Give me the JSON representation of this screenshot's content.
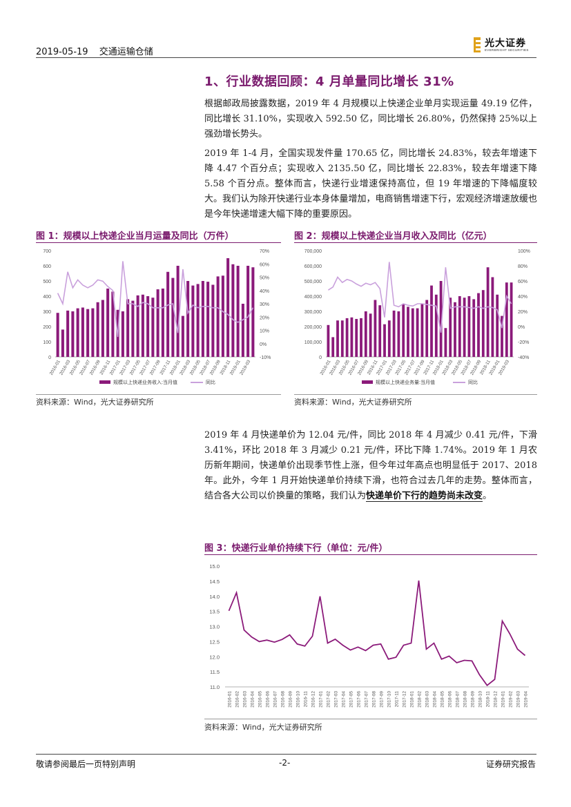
{
  "header": {
    "date": "2019-05-19",
    "sector": "交通运输仓储",
    "logo_cn": "光大证券",
    "logo_en": "EVERBRIGHT SECURITIES"
  },
  "section_title": "1、行业数据回顾：4 月单量同比增长 31%",
  "paragraphs": {
    "p1": "根据邮政局披露数据，2019 年 4 月规模以上快递企业单月实现运量 49.19 亿件，同比增长 31.10%，实现收入 592.50 亿，同比增长 26.80%，仍然保持 25%以上强劲增长势头。",
    "p2": "2019 年 1-4 月，全国实现发件量 170.65 亿，同比增长 24.83%，较去年增速下降 4.47 个百分点；实现收入 2135.50 亿，同比增长 22.83%，较去年增速下降 5.58 个百分点。整体而言，快递行业增速保持高位，但 19 年增速的下降幅度较大。我们认为除开快递行业本身体量增加，电商销售增速下行，宏观经济增速放缓也是今年快递增速大幅下降的重要原因。",
    "p3_main": "2019 年 4 月快递单价为 12.04 元/件，同比 2018 年 4 月减少 0.41 元/件，下滑 3.41%，环比 2018 年 3 月减少 0.21 元/件，环比下降 1.74%。2019 年 1 月农历新年期间，快递单价出现季节性上涨，但今年过年高点也明显低于 2017、2018 年。此外，今年 1 月开始快递单价持续下滑，也符合过去几年的走势。整体而言，结合各大公司以价换量的策略，我们认为",
    "p3_bold": "快递单价下行的趋势尚未改变",
    "p3_end": "。"
  },
  "figures": {
    "fig1": {
      "title": "图 1：规模以上快递企业当月运量及同比（万件）",
      "source": "资料来源：Wind，光大证券研究所"
    },
    "fig2": {
      "title": "图 2：规模以上快递企业当月收入及同比（亿元）",
      "source": "资料来源：Wind，光大证券研究所"
    },
    "fig3": {
      "title": "图 3：快递行业单价持续下行（单位：元/件）",
      "source": "资料来源：Wind，光大证券研究所"
    }
  },
  "footer": {
    "left": "敬请参阅最后一页特别声明",
    "center": "-2-",
    "right": "证券研究报告"
  },
  "colors": {
    "purple": "#7a1a6d",
    "bar": "#8b1a7a",
    "line": "#c9a0dc"
  },
  "chart_data": [
    {
      "type": "bar",
      "title": "图 1：规模以上快递企业当月运量及同比（万件）",
      "x": [
        "2016-01",
        "2016-02",
        "2016-03",
        "2016-04",
        "2016-05",
        "2016-06",
        "2016-07",
        "2016-08",
        "2016-09",
        "2016-10",
        "2016-11",
        "2016-12",
        "2017-01",
        "2017-02",
        "2017-03",
        "2017-04",
        "2017-05",
        "2017-06",
        "2017-07",
        "2017-08",
        "2017-09",
        "2017-10",
        "2017-11",
        "2017-12",
        "2018-01",
        "2018-02",
        "2018-03",
        "2018-04",
        "2018-05",
        "2018-06",
        "2018-07",
        "2018-08",
        "2018-09",
        "2018-10",
        "2018-11",
        "2018-12",
        "2019-01",
        "2019-02",
        "2019-03",
        "2019-04"
      ],
      "x_tick_labels": [
        "2016-01",
        "2016-03",
        "2016-05",
        "2016-07",
        "2016-09",
        "2016-11",
        "2017-01",
        "2017-03",
        "2017-05",
        "2017-07",
        "2017-09",
        "2017-11",
        "2018-01",
        "2018-03",
        "2018-05",
        "2018-07",
        "2018-09",
        "2018-11",
        "2019-01",
        "2019-03"
      ],
      "y_left_ticks": [
        "0",
        "100",
        "200",
        "300",
        "400",
        "500",
        "600",
        "700"
      ],
      "y_left_range": [
        0,
        700
      ],
      "y_right_ticks": [
        "-10%",
        "0%",
        "10%",
        "20%",
        "30%",
        "40%",
        "50%",
        "60%",
        "70%"
      ],
      "y_right_range": [
        -10,
        70
      ],
      "series": [
        {
          "name": "规模以上快递业务收入:当月值",
          "kind": "bar",
          "values": [
            290,
            180,
            305,
            300,
            320,
            325,
            315,
            320,
            360,
            375,
            450,
            430,
            310,
            300,
            380,
            370,
            405,
            410,
            400,
            390,
            445,
            450,
            560,
            520,
            600,
            270,
            500,
            470,
            480,
            500,
            495,
            475,
            530,
            535,
            650,
            610,
            600,
            350,
            600,
            590
          ]
        },
        {
          "name": "同比",
          "kind": "line",
          "values": [
            38,
            30,
            54,
            42,
            48,
            44,
            42,
            44,
            48,
            47,
            43,
            40,
            5,
            62,
            30,
            30,
            28,
            31,
            30,
            27,
            27,
            27,
            29,
            30,
            8,
            56,
            23,
            29,
            27,
            28,
            28,
            27,
            27,
            24,
            22,
            18,
            16,
            18,
            20,
            27
          ]
        }
      ],
      "grid": false,
      "legend_position": "bottom"
    },
    {
      "type": "bar",
      "title": "图 2：规模以上快递企业当月收入及同比（亿元）",
      "x": [
        "2016-01",
        "2016-02",
        "2016-03",
        "2016-04",
        "2016-05",
        "2016-06",
        "2016-07",
        "2016-08",
        "2016-09",
        "2016-10",
        "2016-11",
        "2016-12",
        "2017-01",
        "2017-02",
        "2017-03",
        "2017-04",
        "2017-05",
        "2017-06",
        "2017-07",
        "2017-08",
        "2017-09",
        "2017-10",
        "2017-11",
        "2017-12",
        "2018-01",
        "2018-02",
        "2018-03",
        "2018-04",
        "2018-05",
        "2018-06",
        "2018-07",
        "2018-08",
        "2018-09",
        "2018-10",
        "2018-11",
        "2018-12",
        "2019-01",
        "2019-02",
        "2019-03",
        "2019-04"
      ],
      "x_tick_labels": [
        "2016-01",
        "2016-03",
        "2016-05",
        "2016-07",
        "2016-09",
        "2016-11",
        "2017-01",
        "2017-03",
        "2017-05",
        "2017-07",
        "2017-09",
        "2017-11",
        "2018-01",
        "2018-03",
        "2018-05",
        "2018-07",
        "2018-09",
        "2018-11",
        "2019-01",
        "2019-03"
      ],
      "y_left_ticks": [
        "0",
        "100,000",
        "200,000",
        "300,000",
        "400,000",
        "500,000",
        "600,000",
        "700,000"
      ],
      "y_left_range": [
        0,
        700000
      ],
      "y_right_ticks": [
        "-40%",
        "-20%",
        "0%",
        "20%",
        "40%",
        "60%",
        "80%",
        "100%"
      ],
      "y_right_range": [
        -40,
        100
      ],
      "series": [
        {
          "name": "规模以上快递业务量:当月值",
          "kind": "bar",
          "values": [
            210000,
            130000,
            240000,
            240000,
            255000,
            260000,
            250000,
            255000,
            300000,
            285000,
            375000,
            340000,
            215000,
            240000,
            305000,
            300000,
            345000,
            330000,
            320000,
            320000,
            350000,
            375000,
            470000,
            410000,
            500000,
            190000,
            390000,
            360000,
            400000,
            390000,
            400000,
            380000,
            420000,
            440000,
            590000,
            525000,
            410000,
            270000,
            490000,
            490000
          ]
        },
        {
          "name": "同比",
          "kind": "line",
          "values": [
            48,
            52,
            65,
            58,
            62,
            60,
            56,
            53,
            57,
            55,
            58,
            50,
            12,
            85,
            28,
            26,
            30,
            28,
            27,
            30,
            30,
            29,
            28,
            27,
            -8,
            78,
            24,
            26,
            26,
            26,
            25,
            24,
            26,
            24,
            26,
            25,
            22,
            -2,
            40,
            30
          ]
        }
      ],
      "grid": false,
      "legend_position": "bottom"
    },
    {
      "type": "line",
      "title": "图 3：快递行业单价持续下行（单位：元/件）",
      "x": [
        "2016-01",
        "2016-02",
        "2016-03",
        "2016-04",
        "2016-05",
        "2016-06",
        "2016-07",
        "2016-08",
        "2016-09",
        "2016-10",
        "2016-11",
        "2016-12",
        "2017-01",
        "2017-02",
        "2017-03",
        "2017-04",
        "2017-05",
        "2017-06",
        "2017-07",
        "2017-08",
        "2017-09",
        "2017-10",
        "2017-11",
        "2017-12",
        "2018-01",
        "2018-02",
        "2018-03",
        "2018-04",
        "2018-05",
        "2018-06",
        "2018-07",
        "2018-08",
        "2018-09",
        "2018-10",
        "2018-11",
        "2018-12",
        "2019-01",
        "2019-02",
        "2019-03",
        "2019-04"
      ],
      "y_ticks": [
        "11.0",
        "11.5",
        "12.0",
        "12.5",
        "13.0",
        "13.5",
        "14.0",
        "14.5",
        "15.0"
      ],
      "ylim": [
        11.0,
        15.0
      ],
      "series": [
        {
          "values": [
            13.52,
            14.12,
            12.88,
            12.65,
            12.5,
            12.55,
            12.48,
            12.57,
            12.72,
            12.42,
            12.35,
            12.68,
            14.0,
            12.45,
            12.58,
            12.38,
            12.22,
            12.32,
            12.2,
            12.38,
            12.42,
            11.92,
            11.98,
            12.38,
            12.45,
            14.52,
            12.25,
            12.45,
            11.92,
            12.02,
            11.8,
            11.88,
            11.86,
            11.4,
            11.05,
            11.25,
            13.18,
            12.75,
            12.25,
            12.04
          ]
        }
      ],
      "grid": false
    }
  ]
}
